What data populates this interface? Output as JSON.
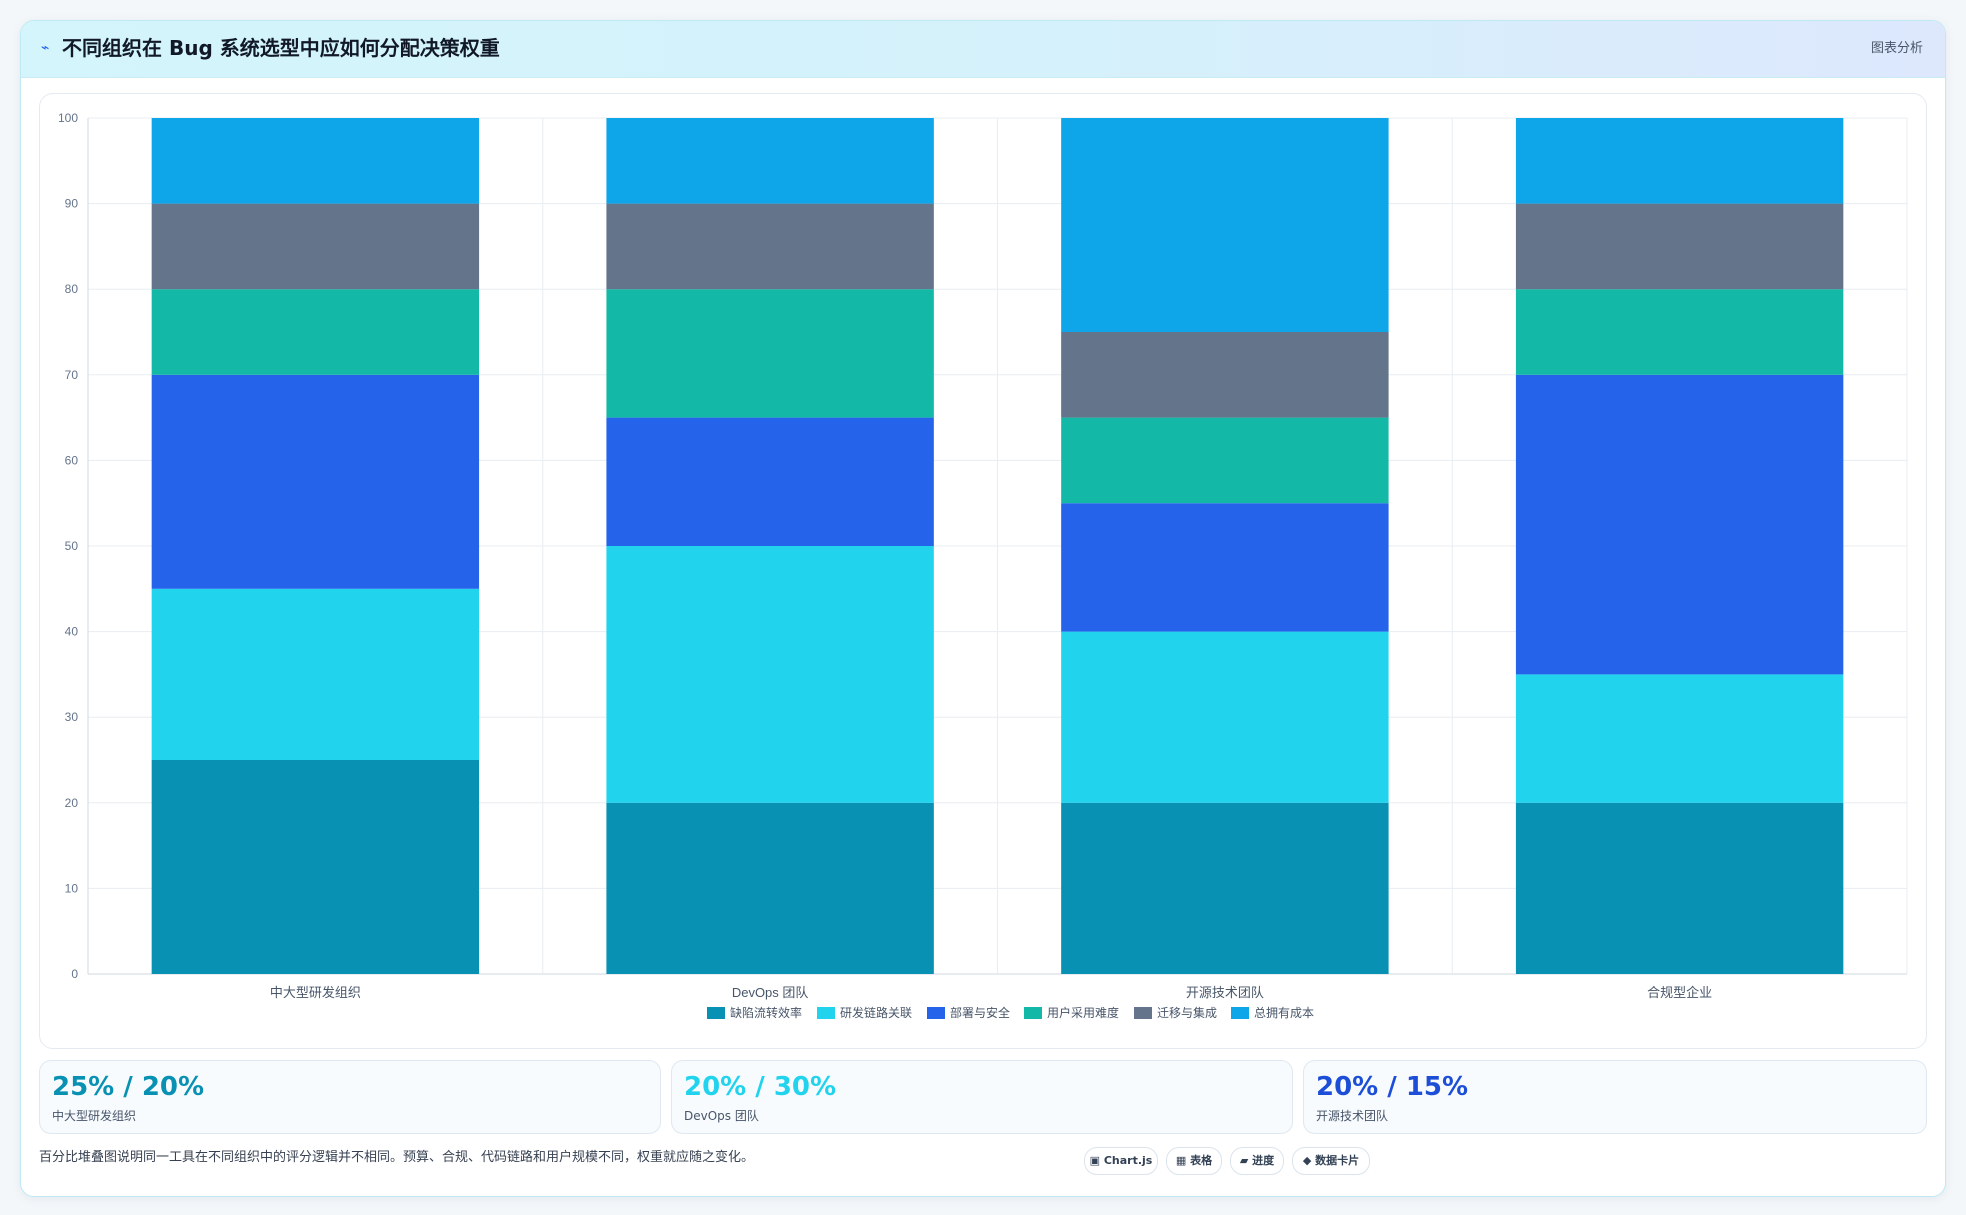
{
  "header": {
    "icon": "pulse-icon",
    "title": "不同组织在 Bug 系统选型中应如何分配决策权重",
    "tag": "图表分析"
  },
  "chart_data": {
    "type": "bar",
    "stacked": true,
    "categories": [
      "中大型研发组织",
      "DevOps 团队",
      "开源技术团队",
      "合规型企业"
    ],
    "series": [
      {
        "name": "缺陷流转效率",
        "color": "#0891b2",
        "values": [
          25,
          20,
          20,
          20
        ]
      },
      {
        "name": "研发链路关联",
        "color": "#22d3ee",
        "values": [
          20,
          30,
          20,
          15
        ]
      },
      {
        "name": "部署与安全",
        "color": "#2563eb",
        "values": [
          25,
          15,
          15,
          35
        ]
      },
      {
        "name": "用户采用难度",
        "color": "#14b8a6",
        "values": [
          10,
          15,
          10,
          10
        ]
      },
      {
        "name": "迁移与集成",
        "color": "#64748b",
        "values": [
          10,
          10,
          10,
          10
        ]
      },
      {
        "name": "总拥有成本",
        "color": "#0ea5e9",
        "values": [
          10,
          10,
          25,
          10
        ]
      }
    ],
    "ylim": [
      0,
      100
    ],
    "yticks": [
      0,
      10,
      20,
      30,
      40,
      50,
      60,
      70,
      80,
      90,
      100
    ],
    "grid": true,
    "legend": "bottom"
  },
  "stats": [
    {
      "value": "25% / 20%",
      "label": "中大型研发组织",
      "color": "#0891b2"
    },
    {
      "value": "20% / 30%",
      "label": "DevOps 团队",
      "color": "#22d3ee"
    },
    {
      "value": "20% / 15%",
      "label": "开源技术团队",
      "color": "#1d4ed8"
    }
  ],
  "footnote": "百分比堆叠图说明同一工具在不同组织中的评分逻辑并不相同。预算、合规、代码链路和用户规模不同，权重就应随之变化。",
  "chips": [
    {
      "icon": "chart-icon",
      "label": "▣ Chart.js"
    },
    {
      "icon": "table-icon",
      "label": "▦ 表格"
    },
    {
      "icon": "progress-icon",
      "label": "▰ 进度"
    },
    {
      "icon": "diamond-icon",
      "label": "◆ 数据卡片"
    }
  ]
}
